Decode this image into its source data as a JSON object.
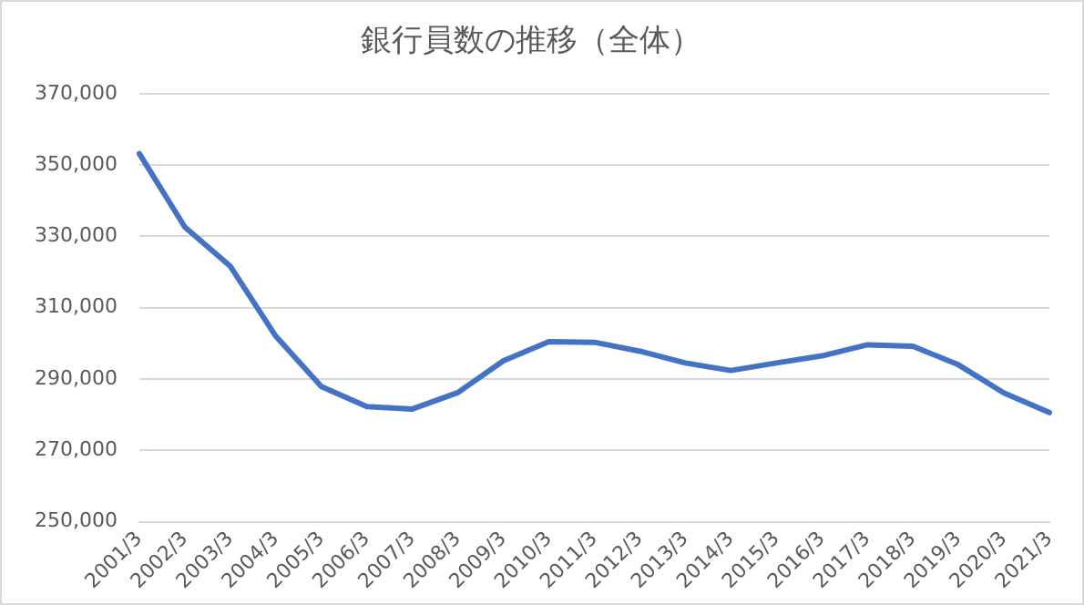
{
  "chart_data": {
    "type": "line",
    "title": "銀行員数の推移（全体）",
    "categories": [
      "2001/3",
      "2002/3",
      "2003/3",
      "2004/3",
      "2005/3",
      "2006/3",
      "2007/3",
      "2008/3",
      "2009/3",
      "2010/3",
      "2011/3",
      "2012/3",
      "2013/3",
      "2014/3",
      "2015/3",
      "2016/3",
      "2017/3",
      "2018/3",
      "2019/3",
      "2020/3",
      "2021/3"
    ],
    "series": [
      {
        "color": "#4472c4",
        "values": [
          353200,
          332600,
          321600,
          302000,
          287900,
          282300,
          281600,
          286200,
          295100,
          300500,
          300300,
          297800,
          294500,
          292400,
          294500,
          296500,
          299600,
          299200,
          294000,
          286100,
          280600
        ]
      }
    ],
    "ylim": [
      250000,
      370000
    ],
    "yticks": [
      {
        "value": 250000,
        "label": "250,000"
      },
      {
        "value": 270000,
        "label": "270,000"
      },
      {
        "value": 290000,
        "label": "290,000"
      },
      {
        "value": 310000,
        "label": "310,000"
      },
      {
        "value": 330000,
        "label": "330,000"
      },
      {
        "value": 350000,
        "label": "350,000"
      },
      {
        "value": 370000,
        "label": "370,000"
      }
    ],
    "grid": "y",
    "legend": false,
    "marker": "none",
    "line_style": "solid"
  }
}
